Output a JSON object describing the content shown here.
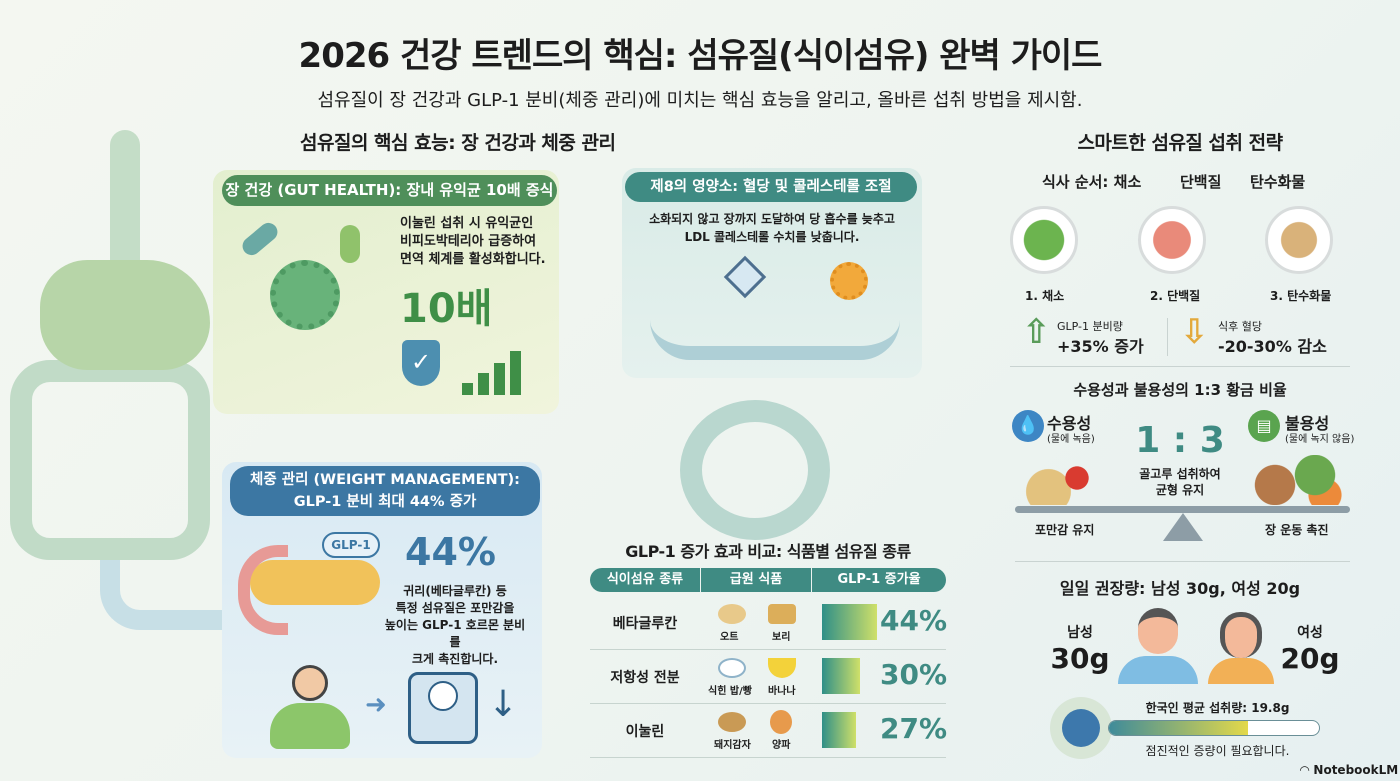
{
  "header": {
    "title": "2026 건강 트렌드의 핵심: 섬유질(식이섬유) 완벽 가이드",
    "subtitle": "섬유질이 장 건강과 GLP-1 분비(체중 관리)에 미치는 핵심 효능을 알리고, 올바른 섭취 방법을 제시함."
  },
  "benefits": {
    "title": "섬유질의 핵심 효능: 장 건강과 체중 관리",
    "gut": {
      "header": "장 건강 (GUT HEALTH): 장내 유익균 10배 증식",
      "text": [
        "이눌린 섭취 시 유익균인",
        "비피도박테리아 급증하여",
        "면역 체계를 활성화합니다."
      ],
      "stat": "10배"
    },
    "weight": {
      "header": [
        "체중 관리 (WEIGHT MANAGEMENT):",
        "GLP-1 분비 최대 44% 증가"
      ],
      "bubble": "GLP-1",
      "stat": "44%",
      "text": [
        "귀리(베타글루칸) 등",
        "특정 섬유질은 포만감을",
        "높이는 GLP-1 호르몬 분비를",
        "크게 촉진합니다."
      ]
    },
    "nutrient": {
      "header": "제8의 영양소: 혈당 및 콜레스테롤 조절",
      "text": [
        "소화되지 않고 장까지 도달하여 당 흡수를 늦추고",
        "LDL 콜레스테롤 수치를 낮춥니다."
      ]
    }
  },
  "table": {
    "title": "GLP-1 증가 효과 비교: 식품별 섬유질 종류",
    "columns": [
      "식이섬유 종류",
      "급원 식품",
      "GLP-1 증가율"
    ],
    "rows": [
      {
        "type": "베타글루칸",
        "foods": [
          "오트",
          "보리"
        ],
        "increase": "44%",
        "value": 44
      },
      {
        "type": "저항성 전분",
        "foods": [
          "식힌 밥/빵",
          "바나나"
        ],
        "increase": "30%",
        "value": 30
      },
      {
        "type": "이눌린",
        "foods": [
          "돼지감자",
          "양파"
        ],
        "increase": "27%",
        "value": 27
      }
    ]
  },
  "strategy": {
    "title": "스마트한 섬유질 섭취 전략",
    "order": {
      "label": "식사 순서: 채소",
      "steps_head": [
        "단백질",
        "탄수화물"
      ],
      "plates": [
        "1. 채소",
        "2. 단백질",
        "3. 탄수화물"
      ]
    },
    "effects": [
      {
        "label": "GLP-1 분비량",
        "value": "+35% 증가",
        "icon": "arrow-up-icon",
        "color": "#5a9c5a"
      },
      {
        "label": "식후 혈당",
        "value": "-20-30% 감소",
        "icon": "arrow-down-icon",
        "color": "#e3a93c"
      }
    ],
    "ratio": {
      "title": "수용성과 불용성의 1:3 황금 비율",
      "soluble": {
        "name": "수용성",
        "desc": "(물에 녹음)",
        "effect": "포만감 유지"
      },
      "insoluble": {
        "name": "불용성",
        "desc": "(물에 녹지 않음)",
        "effect": "장 운동 촉진"
      },
      "ratio": "1 : 3",
      "note": [
        "골고루 섭취하여",
        "균형 유지"
      ]
    },
    "daily": {
      "title": "일일 권장량: 남성 30g, 여성 20g",
      "male": {
        "label": "남성",
        "amount": "30g"
      },
      "female": {
        "label": "여성",
        "amount": "20g"
      },
      "average": "한국인 평균 섭취량: 19.8g",
      "average_value": 19.8,
      "target": 30,
      "note": "점진적인 증량이 필요합니다."
    }
  },
  "brand": "NotebookLM",
  "colors": {
    "green": "#4f8f5a",
    "blue": "#3c77a3",
    "teal": "#3f8b83"
  }
}
